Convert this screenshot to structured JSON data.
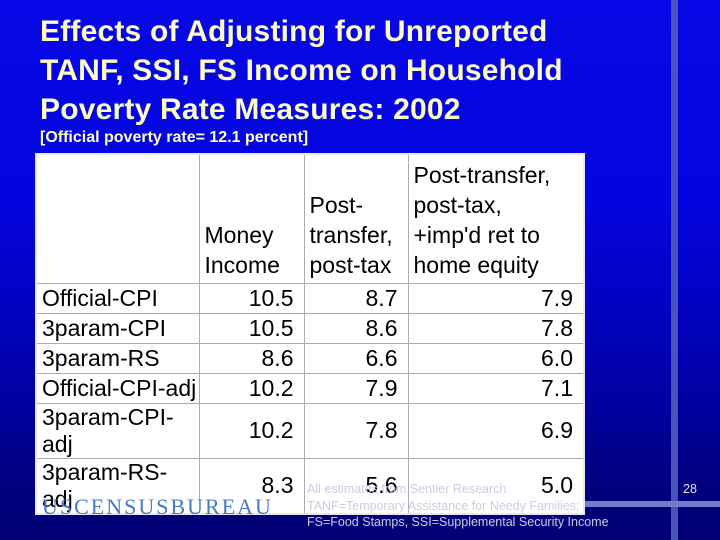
{
  "slide": {
    "title": "Effects of Adjusting for Unreported\nTANF, SSI, FS Income on Household\nPoverty Rate Measures: 2002",
    "subtitle": "[Official poverty rate= 12.1 percent]",
    "logo_text": "USCENSUSBUREAU",
    "footnotes": [
      "All estimates from Sentier Research.",
      "TANF=Temporary Assistance for Needy Families;",
      "FS=Food Stamps, SSI=Supplemental Security Income"
    ],
    "page_number": "28",
    "colors": {
      "background_top": "#0808E8",
      "background_bottom": "#000072",
      "title_text": "#FCFCC9",
      "accent_line": "#4A53BB",
      "logo_blue": "#4679C8"
    }
  },
  "table": {
    "column_headers": [
      "",
      "Money\nIncome",
      "Post-\ntransfer,\npost-tax",
      "Post-transfer,\npost-tax,\n+imp'd ret to\nhome equity"
    ],
    "rows": [
      {
        "label": "Official-CPI",
        "values": [
          "10.5",
          "8.7",
          "7.9"
        ]
      },
      {
        "label": "3param-CPI",
        "values": [
          "10.5",
          "8.6",
          "7.8"
        ]
      },
      {
        "label": "3param-RS",
        "values": [
          "8.6",
          "6.6",
          "6.0"
        ]
      },
      {
        "label": "Official-CPI-adj",
        "values": [
          "10.2",
          "7.9",
          "7.1"
        ]
      },
      {
        "label": "3param-CPI-adj",
        "values": [
          "10.2",
          "7.8",
          "6.9"
        ]
      },
      {
        "label": "3param-RS-adj",
        "values": [
          "8.3",
          "5.6",
          "5.0"
        ]
      }
    ]
  }
}
